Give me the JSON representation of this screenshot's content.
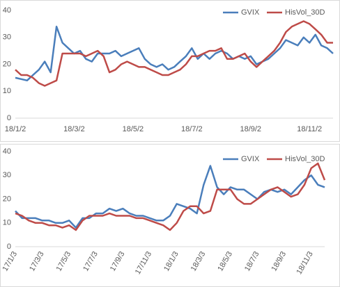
{
  "chart_data": [
    {
      "type": "line",
      "categories": [
        "18/1/2",
        null,
        null,
        null,
        null,
        null,
        null,
        null,
        null,
        null,
        "18/3/2",
        null,
        null,
        null,
        null,
        null,
        null,
        null,
        null,
        null,
        "18/5/2",
        null,
        null,
        null,
        null,
        null,
        null,
        null,
        null,
        null,
        "18/7/2",
        null,
        null,
        null,
        null,
        null,
        null,
        null,
        null,
        null,
        "18/9/2",
        null,
        null,
        null,
        null,
        null,
        null,
        null,
        null,
        null,
        "18/11/2",
        null,
        null,
        null,
        null
      ],
      "series": [
        {
          "name": "GVIX",
          "color": "#4a7ebb",
          "values": [
            15,
            14.5,
            14,
            16,
            18,
            21,
            17,
            34,
            28,
            26,
            24,
            25,
            22,
            21,
            24,
            24,
            24,
            25,
            23,
            24,
            25,
            26,
            22,
            20,
            19,
            20,
            18,
            19,
            21,
            23,
            26,
            22,
            24,
            22,
            24,
            25,
            24,
            22,
            23,
            22,
            23,
            20,
            21,
            22,
            24,
            26,
            29,
            28,
            27,
            30,
            28,
            31,
            27,
            26,
            24
          ]
        },
        {
          "name": "HisVol_30D",
          "color": "#be4b48",
          "values": [
            18,
            16,
            16,
            15,
            13,
            12,
            13,
            14,
            24,
            24,
            24,
            24,
            23,
            24,
            25,
            23,
            17,
            18,
            20,
            21,
            20,
            19,
            19,
            18,
            17,
            16,
            16,
            17,
            18,
            20,
            23,
            23,
            24,
            25,
            25,
            26,
            22,
            22,
            23,
            24,
            21,
            19,
            21,
            23,
            25,
            28,
            32,
            34,
            35,
            36,
            35,
            33,
            31,
            28,
            28
          ]
        }
      ],
      "ylim": [
        0,
        40
      ],
      "yticks": [
        0,
        10,
        20,
        30,
        40
      ],
      "legend": "top-right"
    },
    {
      "type": "line",
      "categories": [
        "17/1/3",
        null,
        null,
        null,
        "17/3/3",
        null,
        null,
        null,
        "17/5/3",
        null,
        null,
        null,
        "17/7/3",
        null,
        null,
        null,
        "17/9/3",
        null,
        null,
        null,
        "17/11/3",
        null,
        null,
        null,
        "18/1/3",
        null,
        null,
        null,
        "18/3/3",
        null,
        null,
        null,
        "18/5/3",
        null,
        null,
        null,
        "18/7/3",
        null,
        null,
        null,
        "18/9/3",
        null,
        null,
        null,
        "18/11/3",
        null,
        null
      ],
      "series": [
        {
          "name": "GVIX",
          "color": "#4a7ebb",
          "values": [
            15,
            12,
            12,
            12,
            11,
            11,
            10,
            10,
            11,
            8,
            12,
            12,
            14,
            14,
            16,
            15,
            16,
            14,
            13,
            13,
            12,
            11,
            11,
            13,
            18,
            17,
            16,
            14,
            26,
            34,
            25,
            22,
            25,
            24,
            24,
            22,
            20,
            23,
            24,
            23,
            24,
            22,
            25,
            28,
            30,
            26,
            25
          ]
        },
        {
          "name": "HisVol_30D",
          "color": "#be4b48",
          "values": [
            14,
            13,
            11,
            10,
            10,
            9,
            9,
            8,
            9,
            7,
            11,
            13,
            13,
            13,
            14,
            13,
            13,
            13,
            12,
            12,
            11,
            10,
            9,
            7,
            10,
            15,
            17,
            17,
            14,
            15,
            24,
            24,
            24,
            20,
            18,
            18,
            20,
            22,
            24,
            25,
            23,
            21,
            22,
            26,
            33,
            35,
            28
          ]
        }
      ],
      "ylim": [
        0,
        40
      ],
      "yticks": [
        0,
        10,
        20,
        30,
        40
      ],
      "legend": "top-right"
    }
  ]
}
